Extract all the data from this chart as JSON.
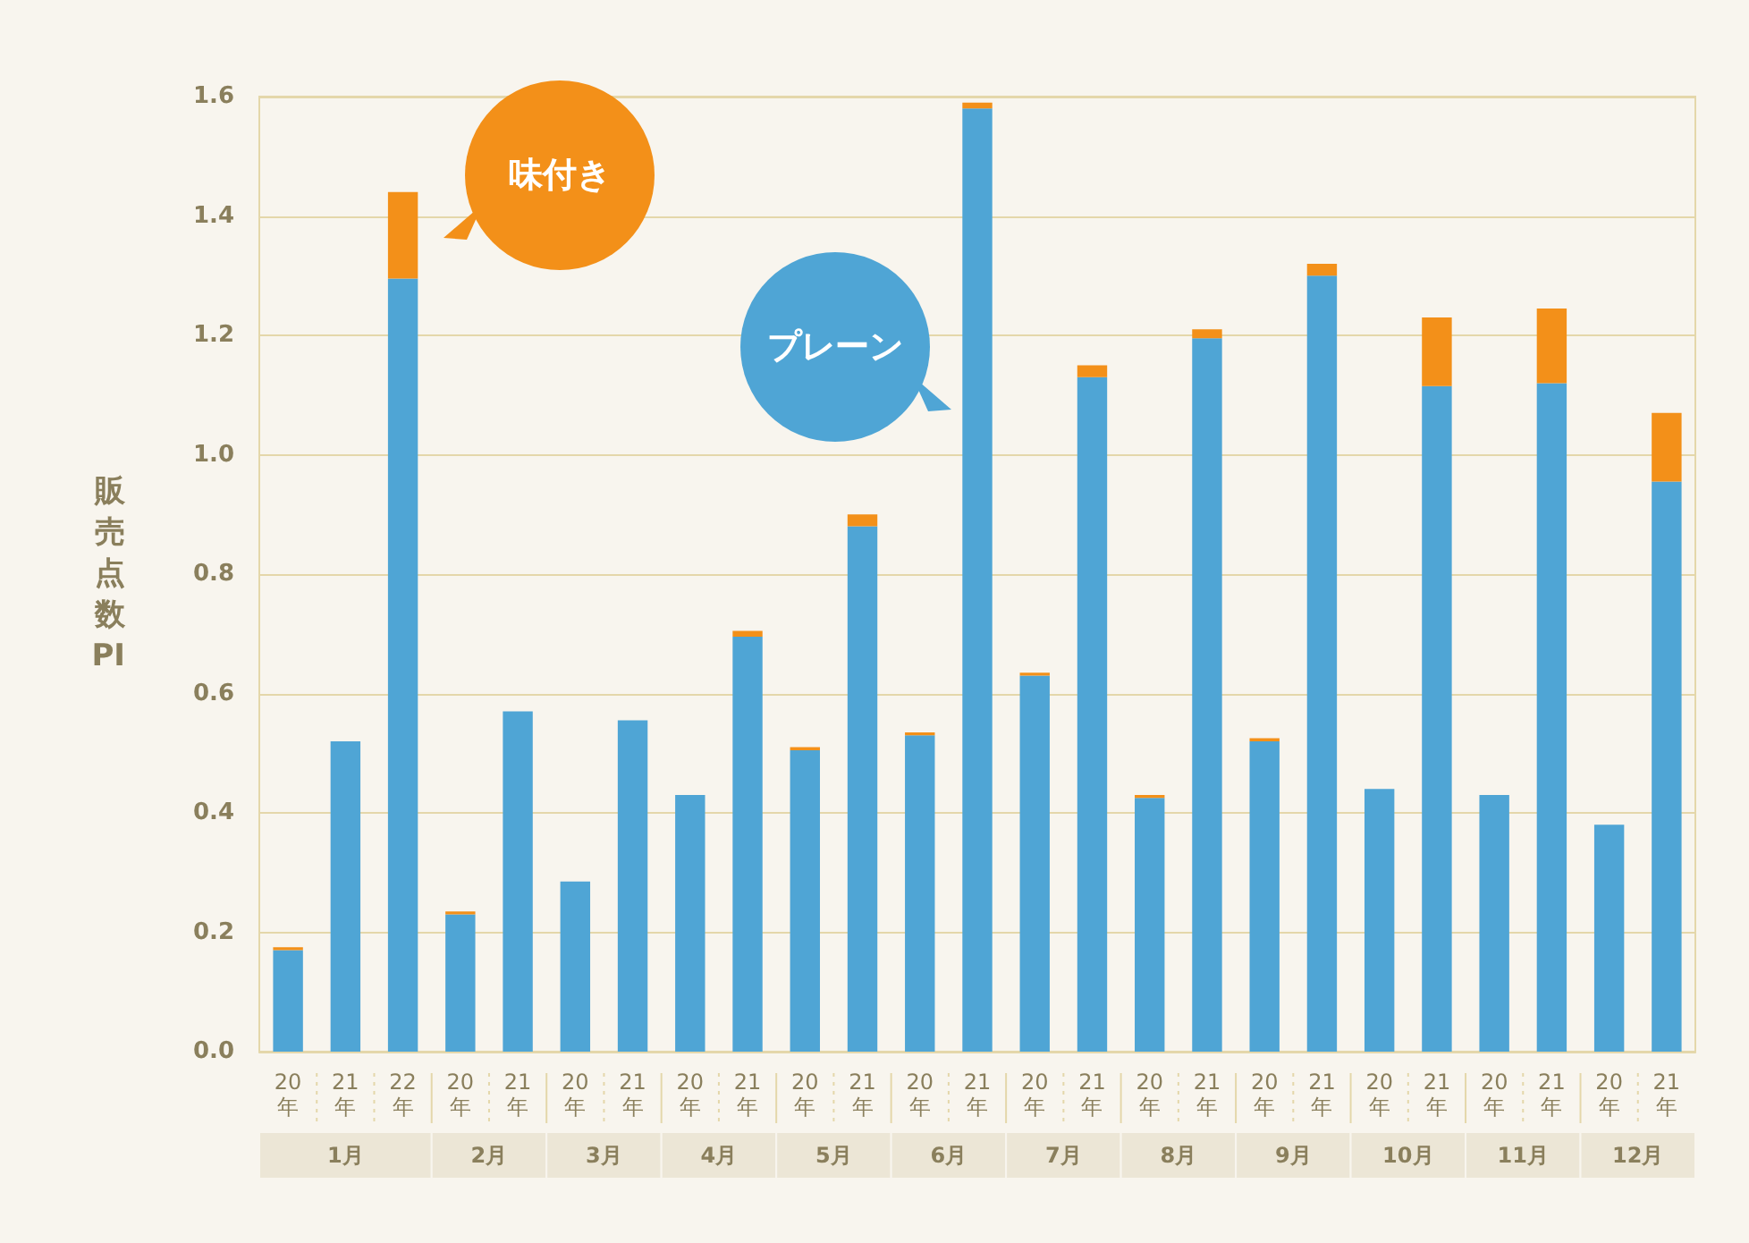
{
  "chart_data": {
    "type": "bar",
    "ylabel": "販売点数PI",
    "stacked": true,
    "categories": [
      "20年",
      "21年",
      "22年",
      "20年",
      "21年",
      "20年",
      "21年",
      "20年",
      "21年",
      "20年",
      "21年",
      "20年",
      "21年",
      "20年",
      "21年",
      "20年",
      "21年",
      "20年",
      "21年",
      "20年",
      "21年",
      "20年",
      "21年",
      "20年",
      "21年"
    ],
    "annotations": [
      "1月",
      "2月",
      "3月",
      "4月",
      "5月",
      "6月",
      "7月",
      "8月",
      "9月",
      "10月",
      "11月",
      "12月"
    ],
    "series": [
      {
        "name": "プレーン",
        "color": "#4fa5d5",
        "values": [
          0.17,
          0.52,
          1.295,
          0.23,
          0.57,
          0.285,
          0.555,
          0.43,
          0.695,
          0.505,
          0.88,
          0.53,
          1.58,
          0.63,
          1.13,
          0.425,
          1.195,
          0.52,
          1.3,
          0.44,
          1.115,
          0.43,
          1.12,
          0.38,
          0.955
        ]
      },
      {
        "name": "味付き",
        "color": "#f39019",
        "values": [
          0.005,
          0,
          0.145,
          0.005,
          0,
          0,
          0,
          0,
          0.01,
          0.005,
          0.02,
          0.005,
          0.01,
          0.005,
          0.02,
          0.005,
          0.015,
          0.005,
          0.02,
          0,
          0.115,
          0,
          0.125,
          0,
          0.115
        ]
      }
    ],
    "ylim": [
      0,
      1.6
    ],
    "yticks": [
      {
        "value": 0,
        "label": "0.0"
      },
      0.2,
      0.4,
      0.6,
      0.8,
      {
        "value": 1,
        "label": "1.0"
      },
      1.2,
      1.4,
      1.6
    ],
    "grid": "y",
    "legend": "top left"
  }
}
